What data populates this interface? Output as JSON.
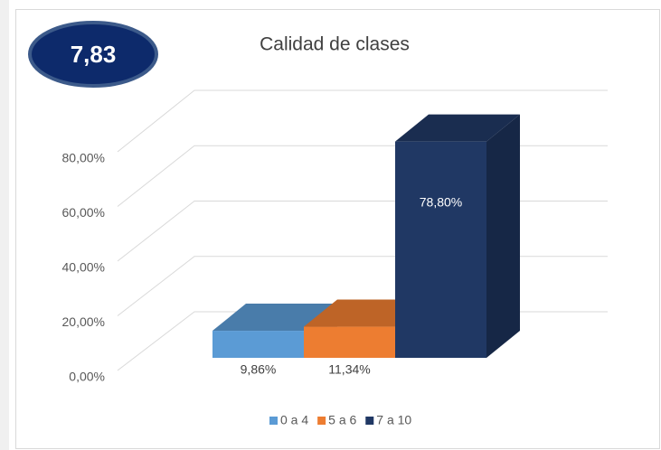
{
  "chart_data": {
    "type": "bar3d",
    "title": "Calidad de clases",
    "badge": "7,83",
    "categories": [
      "0 a 4",
      "5 a 6",
      "7 a 10"
    ],
    "values": [
      9.86,
      11.34,
      78.8
    ],
    "value_labels": [
      "9,86%",
      "11,34%",
      "78,80%"
    ],
    "colors": [
      "#5b9bd5",
      "#ed7d31",
      "#203864"
    ],
    "ylim": [
      0,
      80
    ],
    "yticks": [
      {
        "value": 0,
        "label": "0,00%"
      },
      {
        "value": 20,
        "label": "20,00%"
      },
      {
        "value": 40,
        "label": "40,00%"
      },
      {
        "value": 60,
        "label": "60,00%"
      },
      {
        "value": 80,
        "label": "80,00%"
      }
    ],
    "grid": true,
    "legend": "bottom"
  }
}
